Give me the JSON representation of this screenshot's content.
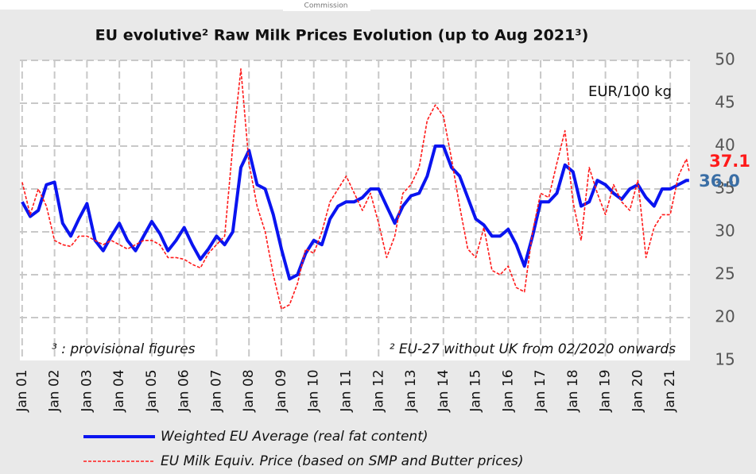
{
  "chart_data": {
    "type": "line",
    "title": "EU evolutive² Raw Milk Prices Evolution (up to Aug 2021³)",
    "header_fragment": "Commission",
    "unit_label": "EUR/100 kg",
    "notes": [
      "³ : provisional figures",
      "² EU-27 without UK from 02/2020 onwards"
    ],
    "x": [
      2001,
      2001.25,
      2001.5,
      2001.75,
      2002,
      2002.25,
      2002.5,
      2002.75,
      2003,
      2003.25,
      2003.5,
      2003.75,
      2004,
      2004.25,
      2004.5,
      2004.75,
      2005,
      2005.25,
      2005.5,
      2005.75,
      2006,
      2006.25,
      2006.5,
      2006.75,
      2007,
      2007.25,
      2007.5,
      2007.75,
      2008,
      2008.25,
      2008.5,
      2008.75,
      2009,
      2009.25,
      2009.5,
      2009.75,
      2010,
      2010.25,
      2010.5,
      2010.75,
      2011,
      2011.25,
      2011.5,
      2011.75,
      2012,
      2012.25,
      2012.5,
      2012.75,
      2013,
      2013.25,
      2013.5,
      2013.75,
      2014,
      2014.25,
      2014.5,
      2014.75,
      2015,
      2015.25,
      2015.5,
      2015.75,
      2016,
      2016.25,
      2016.5,
      2016.75,
      2017,
      2017.25,
      2017.5,
      2017.75,
      2018,
      2018.25,
      2018.5,
      2018.75,
      2019,
      2019.25,
      2019.5,
      2019.75,
      2020,
      2020.25,
      2020.5,
      2020.75,
      2021,
      2021.25,
      2021.5,
      2021.58
    ],
    "series": [
      {
        "name": "Weighted EU Average (real fat content)",
        "color": "#0a14f0",
        "dashed": false,
        "values": [
          33.5,
          31.8,
          32.5,
          35.5,
          35.8,
          31.0,
          29.5,
          31.5,
          33.3,
          29.0,
          27.8,
          29.5,
          31.0,
          29.0,
          27.8,
          29.5,
          31.2,
          29.8,
          27.8,
          29.0,
          30.5,
          28.5,
          26.8,
          28.0,
          29.5,
          28.5,
          30.0,
          37.5,
          39.5,
          35.5,
          35.0,
          32.0,
          28.0,
          24.5,
          25.0,
          27.5,
          29.0,
          28.5,
          31.5,
          33.0,
          33.5,
          33.5,
          34.0,
          35.0,
          35.0,
          33.0,
          31.0,
          33.0,
          34.2,
          34.5,
          36.5,
          40.0,
          40.0,
          37.5,
          36.5,
          34.0,
          31.5,
          30.8,
          29.5,
          29.5,
          30.3,
          28.5,
          26.0,
          29.5,
          33.5,
          33.5,
          34.5,
          37.8,
          37.0,
          33.0,
          33.5,
          36.0,
          35.5,
          34.5,
          33.8,
          35.0,
          35.5,
          34.0,
          33.0,
          35.0,
          35.0,
          35.5,
          36.0,
          36.0
        ],
        "value_labels": [
          null,
          null,
          null,
          null,
          null,
          null,
          null,
          null,
          null,
          null,
          null,
          null,
          null,
          null,
          null,
          null,
          null,
          null,
          null,
          null,
          null,
          null,
          null,
          null,
          null,
          null,
          null,
          null,
          null,
          null,
          null,
          null,
          null,
          null,
          null,
          null,
          null,
          null,
          null,
          null,
          null,
          null,
          null,
          null,
          null,
          null,
          null,
          null,
          null,
          null,
          null,
          null,
          null,
          null,
          null,
          null,
          null,
          null,
          null,
          null,
          null,
          null,
          null,
          null,
          null,
          null,
          null,
          null,
          null,
          null,
          null,
          null,
          null,
          null,
          null,
          null,
          null,
          null,
          null,
          null,
          null,
          null,
          null,
          "36.0"
        ],
        "label_color": "#3a6ea5"
      },
      {
        "name": "EU Milk Equiv. Price (based on SMP and Butter prices)",
        "color": "#ff1a1a",
        "dashed": true,
        "values": [
          35.8,
          32.0,
          35.0,
          33.0,
          29.0,
          28.5,
          28.3,
          29.5,
          29.5,
          29.0,
          28.5,
          29.0,
          28.5,
          28.0,
          28.5,
          29.0,
          29.0,
          28.5,
          27.0,
          27.0,
          26.8,
          26.2,
          25.8,
          27.5,
          28.5,
          29.5,
          40.0,
          49.0,
          38.0,
          33.0,
          30.0,
          25.0,
          21.0,
          21.5,
          24.0,
          28.0,
          27.5,
          30.0,
          33.5,
          35.0,
          36.5,
          34.5,
          32.5,
          34.5,
          31.0,
          27.0,
          29.5,
          34.5,
          35.5,
          37.5,
          43.0,
          44.8,
          43.5,
          38.5,
          33.0,
          28.0,
          27.0,
          30.5,
          25.5,
          25.0,
          26.0,
          23.5,
          23.0,
          30.0,
          34.5,
          34.0,
          38.0,
          41.8,
          33.5,
          29.0,
          37.5,
          34.5,
          32.0,
          35.5,
          33.5,
          32.5,
          36.0,
          27.0,
          30.5,
          32.0,
          32.0,
          36.5,
          38.5,
          37.1
        ],
        "label_color": "#ff1a1a"
      }
    ],
    "xlim": [
      2000.93,
      2021.61
    ],
    "xticks": [
      {
        "value": 2001,
        "label": "Jan 01"
      },
      {
        "value": 2002,
        "label": "Jan 02"
      },
      {
        "value": 2003,
        "label": "Jan 03"
      },
      {
        "value": 2004,
        "label": "Jan 04"
      },
      {
        "value": 2005,
        "label": "Jan 05"
      },
      {
        "value": 2006,
        "label": "Jan 06"
      },
      {
        "value": 2007,
        "label": "Jan 07"
      },
      {
        "value": 2008,
        "label": "Jan 08"
      },
      {
        "value": 2009,
        "label": "Jan 09"
      },
      {
        "value": 2010,
        "label": "Jan 10"
      },
      {
        "value": 2011,
        "label": "Jan 11"
      },
      {
        "value": 2012,
        "label": "Jan 12"
      },
      {
        "value": 2013,
        "label": "Jan 13"
      },
      {
        "value": 2014,
        "label": "Jan 14"
      },
      {
        "value": 2015,
        "label": "Jan 15"
      },
      {
        "value": 2016,
        "label": "Jan 16"
      },
      {
        "value": 2017,
        "label": "Jan 17"
      },
      {
        "value": 2018,
        "label": "Jan 18"
      },
      {
        "value": 2019,
        "label": "Jan 19"
      },
      {
        "value": 2020,
        "label": "Jan 20"
      },
      {
        "value": 2021,
        "label": "Jan 21"
      }
    ],
    "ylim": [
      15,
      50
    ],
    "yticks": [
      15,
      20,
      25,
      30,
      35,
      40,
      45,
      50
    ],
    "grid": true
  }
}
